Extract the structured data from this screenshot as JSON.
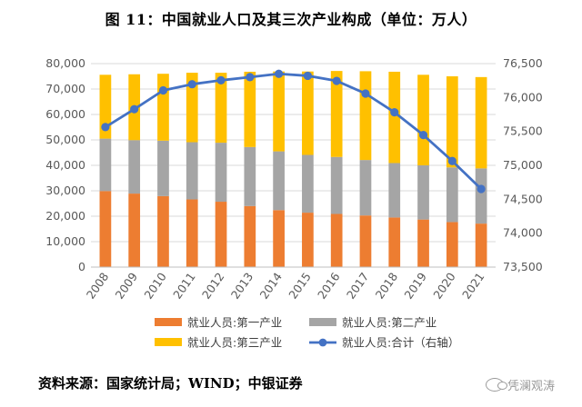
{
  "title": "图 11：中国就业人口及其三次产业构成（单位：万人）",
  "source": "资料来源：国家统计局；WIND；中银证券",
  "watermark": "凭澜观涛",
  "watermark_icon": "wechat-icon",
  "chart_data": {
    "type": "bar",
    "stacked": true,
    "categories": [
      "2008",
      "2009",
      "2010",
      "2011",
      "2012",
      "2013",
      "2014",
      "2015",
      "2016",
      "2017",
      "2018",
      "2019",
      "2020",
      "2021"
    ],
    "series": [
      {
        "name": "就业人员:第一产业",
        "kind": "bar",
        "axis": "left",
        "color": "#ED7D31",
        "values": [
          29900,
          28900,
          27900,
          26600,
          25700,
          24000,
          22400,
          21400,
          20900,
          20300,
          19500,
          18700,
          17700,
          17100
        ]
      },
      {
        "name": "就业人员:第二产业",
        "kind": "bar",
        "axis": "left",
        "color": "#A5A5A5",
        "values": [
          20600,
          21000,
          21800,
          22500,
          23200,
          23200,
          23100,
          22700,
          22400,
          21800,
          21400,
          21300,
          21500,
          21700
        ]
      },
      {
        "name": "就业人员:第三产业",
        "kind": "bar",
        "axis": "left",
        "color": "#FFC000",
        "values": [
          25100,
          25900,
          26300,
          27300,
          27500,
          29600,
          31400,
          32800,
          33800,
          34900,
          35900,
          35600,
          35800,
          35900
        ]
      },
      {
        "name": "就业人员:合计（右轴）",
        "kind": "line",
        "axis": "right",
        "color": "#4472C4",
        "values": [
          75564,
          75828,
          76105,
          76196,
          76254,
          76301,
          76349,
          76320,
          76245,
          76058,
          75782,
          75447,
          75064,
          74652
        ]
      }
    ],
    "y_left": {
      "min": 0,
      "max": 80000,
      "step": 10000,
      "tick_labels": [
        "0",
        "10,000",
        "20,000",
        "30,000",
        "40,000",
        "50,000",
        "60,000",
        "70,000",
        "80,000"
      ]
    },
    "y_right": {
      "min": 73500,
      "max": 76500,
      "step": 500,
      "tick_labels": [
        "73,500",
        "74,000",
        "74,500",
        "75,000",
        "75,500",
        "76,000",
        "76,500"
      ]
    },
    "grid": true,
    "legend_position": "bottom"
  }
}
